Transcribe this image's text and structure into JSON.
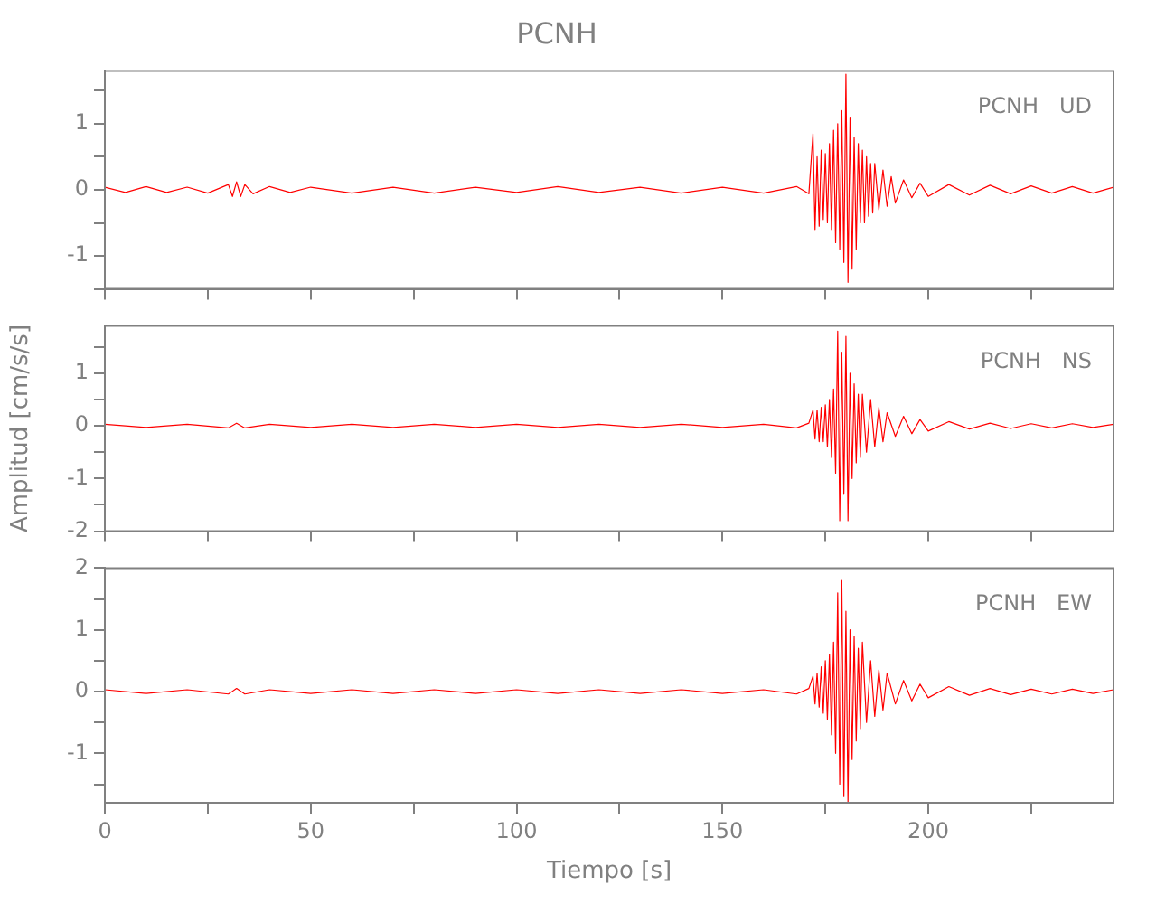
{
  "chart_data": [
    {
      "type": "line",
      "title": "PCNH",
      "xlim": [
        0,
        245
      ],
      "xticks": [
        0,
        {
          "value": 25,
          "label": null
        },
        50,
        {
          "value": 75,
          "label": null
        },
        100,
        {
          "value": 125,
          "label": null
        },
        150,
        {
          "value": 175,
          "label": null
        },
        200,
        {
          "value": 225,
          "label": null
        }
      ],
      "ylim": [
        -1.5,
        1.8
      ],
      "yticks": [
        {
          "value": -1.5,
          "label": null
        },
        -1,
        {
          "value": -0.5,
          "label": null
        },
        0,
        {
          "value": 0.5,
          "label": null
        },
        1,
        {
          "value": 1.5,
          "label": null
        }
      ],
      "tick_labels": "y",
      "marker": "none",
      "line_style": "solid",
      "grid": false,
      "series": [
        {
          "name": "PCNH   UD",
          "color": "#ff0000",
          "x": [
            0,
            5,
            10,
            15,
            20,
            25,
            30,
            31,
            32,
            33,
            34,
            36,
            40,
            45,
            50,
            60,
            70,
            80,
            90,
            100,
            110,
            120,
            130,
            140,
            150,
            160,
            168,
            171,
            172,
            172.5,
            173,
            173.5,
            174,
            174.5,
            175,
            175.5,
            176,
            176.5,
            177,
            177.5,
            178,
            178.5,
            179,
            179.5,
            180,
            180.5,
            181,
            181.5,
            182,
            182.5,
            183,
            183.5,
            184,
            184.5,
            185,
            185.5,
            186,
            186.5,
            187,
            188,
            189,
            190,
            191,
            192,
            194,
            196,
            198,
            200,
            205,
            210,
            215,
            220,
            225,
            230,
            235,
            240,
            245
          ],
          "values": [
            0.04,
            -0.04,
            0.05,
            -0.04,
            0.04,
            -0.05,
            0.08,
            -0.1,
            0.12,
            -0.1,
            0.08,
            -0.06,
            0.05,
            -0.04,
            0.04,
            -0.05,
            0.04,
            -0.05,
            0.04,
            -0.04,
            0.05,
            -0.04,
            0.04,
            -0.05,
            0.04,
            -0.05,
            0.05,
            -0.06,
            0.85,
            -0.6,
            0.5,
            -0.55,
            0.6,
            -0.45,
            0.55,
            -0.5,
            0.7,
            -0.6,
            0.9,
            -0.8,
            1.0,
            -0.9,
            1.2,
            -1.1,
            1.75,
            -1.4,
            1.1,
            -1.2,
            0.8,
            -0.9,
            0.7,
            -0.5,
            0.6,
            -0.5,
            0.5,
            -0.4,
            0.4,
            -0.35,
            0.4,
            -0.3,
            0.3,
            -0.25,
            0.2,
            -0.2,
            0.15,
            -0.12,
            0.1,
            -0.1,
            0.08,
            -0.08,
            0.07,
            -0.06,
            0.06,
            -0.05,
            0.05,
            -0.05,
            0.04
          ]
        }
      ]
    },
    {
      "type": "line",
      "ylabel": "Amplitud [cm/s/s]",
      "xlim": [
        0,
        245
      ],
      "xticks": [
        0,
        {
          "value": 25,
          "label": null
        },
        50,
        {
          "value": 75,
          "label": null
        },
        100,
        {
          "value": 125,
          "label": null
        },
        150,
        {
          "value": 175,
          "label": null
        },
        200,
        {
          "value": 225,
          "label": null
        }
      ],
      "ylim": [
        -2,
        1.9
      ],
      "yticks": [
        -2,
        {
          "value": -1.5,
          "label": null
        },
        -1,
        {
          "value": -0.5,
          "label": null
        },
        0,
        {
          "value": 0.5,
          "label": null
        },
        1,
        {
          "value": 1.5,
          "label": null
        }
      ],
      "tick_labels": "y",
      "marker": "none",
      "line_style": "solid",
      "grid": false,
      "series": [
        {
          "name": "PCNH   NS",
          "color": "#ff0000",
          "x": [
            0,
            10,
            20,
            30,
            32,
            34,
            40,
            50,
            60,
            70,
            80,
            90,
            100,
            110,
            120,
            130,
            140,
            150,
            160,
            168,
            171,
            172,
            172.5,
            173,
            173.5,
            174,
            174.5,
            175,
            175.5,
            176,
            176.5,
            177,
            177.5,
            178,
            178.5,
            179,
            179.5,
            180,
            180.5,
            181,
            181.5,
            182,
            182.5,
            183,
            183.5,
            184,
            185,
            186,
            187,
            188,
            189,
            190,
            192,
            194,
            196,
            198,
            200,
            205,
            210,
            215,
            220,
            225,
            230,
            235,
            240,
            245
          ],
          "values": [
            0.03,
            -0.03,
            0.03,
            -0.04,
            0.05,
            -0.04,
            0.03,
            -0.03,
            0.03,
            -0.03,
            0.03,
            -0.03,
            0.03,
            -0.03,
            0.03,
            -0.03,
            0.03,
            -0.03,
            0.03,
            -0.04,
            0.05,
            0.3,
            -0.25,
            0.3,
            -0.3,
            0.35,
            -0.3,
            0.4,
            -0.4,
            0.5,
            -0.6,
            0.7,
            -0.9,
            1.8,
            -1.8,
            1.4,
            -1.3,
            1.7,
            -1.8,
            1.0,
            -1.0,
            0.8,
            -0.7,
            0.6,
            -0.6,
            0.6,
            -0.5,
            0.5,
            -0.4,
            0.35,
            -0.3,
            0.25,
            -0.2,
            0.18,
            -0.15,
            0.12,
            -0.1,
            0.08,
            -0.06,
            0.05,
            -0.05,
            0.04,
            -0.04,
            0.04,
            -0.03,
            0.03
          ]
        }
      ]
    },
    {
      "type": "line",
      "xlabel": "Tiempo [s]",
      "xlim": [
        0,
        245
      ],
      "xticks": [
        0,
        {
          "value": 25,
          "label": null
        },
        50,
        {
          "value": 75,
          "label": null
        },
        100,
        {
          "value": 125,
          "label": null
        },
        150,
        {
          "value": 175,
          "label": null
        },
        200,
        {
          "value": 225,
          "label": null
        }
      ],
      "ylim": [
        -1.8,
        2
      ],
      "yticks": [
        {
          "value": -1.5,
          "label": null
        },
        -1,
        {
          "value": -0.5,
          "label": null
        },
        0,
        {
          "value": 0.5,
          "label": null
        },
        1,
        {
          "value": 1.5,
          "label": null
        },
        2
      ],
      "marker": "none",
      "line_style": "solid",
      "grid": false,
      "series": [
        {
          "name": "PCNH   EW",
          "color": "#ff0000",
          "x": [
            0,
            10,
            20,
            30,
            32,
            34,
            40,
            50,
            60,
            70,
            80,
            90,
            100,
            110,
            120,
            130,
            140,
            150,
            160,
            168,
            171,
            172,
            172.5,
            173,
            173.5,
            174,
            174.5,
            175,
            175.5,
            176,
            176.5,
            177,
            177.5,
            178,
            178.5,
            179,
            179.5,
            180,
            180.5,
            181,
            181.5,
            182,
            182.5,
            183,
            183.5,
            184,
            185,
            186,
            187,
            188,
            189,
            190,
            192,
            194,
            196,
            198,
            200,
            205,
            210,
            215,
            220,
            225,
            230,
            235,
            240,
            245
          ],
          "values": [
            0.03,
            -0.03,
            0.03,
            -0.04,
            0.05,
            -0.04,
            0.03,
            -0.03,
            0.03,
            -0.03,
            0.03,
            -0.03,
            0.03,
            -0.03,
            0.03,
            -0.03,
            0.03,
            -0.03,
            0.03,
            -0.04,
            0.05,
            0.25,
            -0.2,
            0.3,
            -0.25,
            0.4,
            -0.35,
            0.5,
            -0.45,
            0.6,
            -0.7,
            0.8,
            -1.0,
            1.6,
            -1.5,
            1.8,
            -1.7,
            1.3,
            -1.8,
            1.0,
            -1.1,
            0.9,
            -0.8,
            0.7,
            -0.6,
            0.8,
            -0.5,
            0.5,
            -0.4,
            0.35,
            -0.3,
            0.3,
            -0.2,
            0.18,
            -0.15,
            0.12,
            -0.1,
            0.08,
            -0.06,
            0.05,
            -0.05,
            0.04,
            -0.04,
            0.04,
            -0.03,
            0.03
          ]
        }
      ]
    }
  ]
}
